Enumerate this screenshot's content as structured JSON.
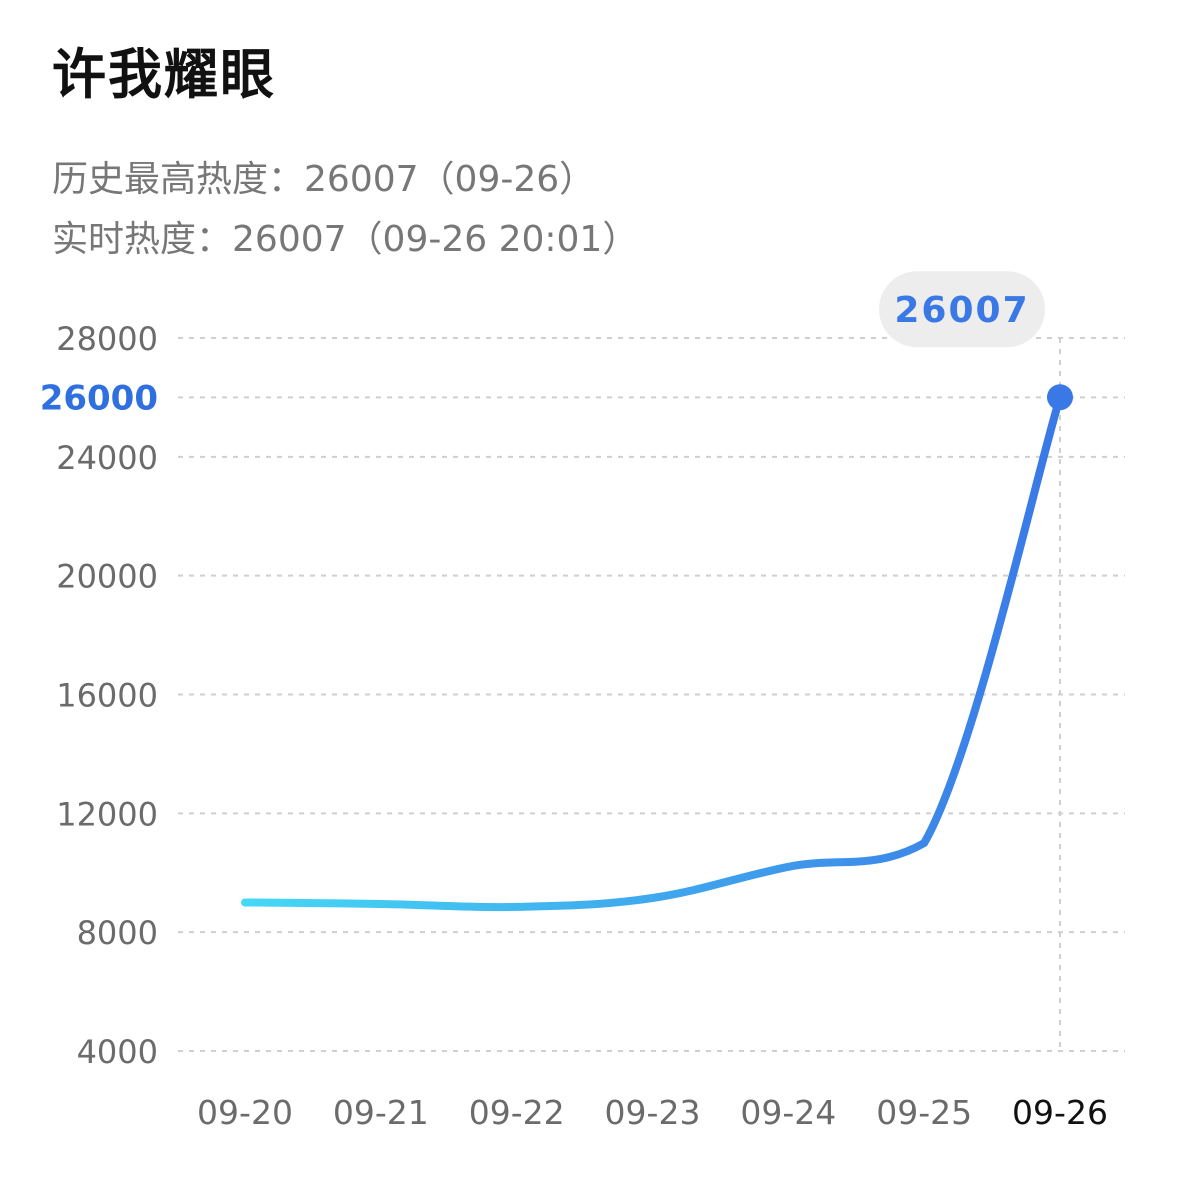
{
  "header": {
    "title": "许我耀眼"
  },
  "stats": {
    "peak_label": "历史最高热度：",
    "peak_value": "26007（09-26）",
    "realtime_label": "实时热度：",
    "realtime_value": "26007（09-26 20:01）"
  },
  "colors": {
    "line_start": "#45d8f5",
    "line_end": "#3a78e6",
    "grid": "#cfcfcf",
    "highlight": "#2f6fe0",
    "bubble_bg": "#ededed"
  },
  "chart_data": {
    "type": "line",
    "x": [
      "09-20",
      "09-21",
      "09-22",
      "09-23",
      "09-24",
      "09-25",
      "09-26"
    ],
    "series": [
      {
        "values": [
          9000,
          8950,
          8850,
          9150,
          10200,
          11000,
          26007
        ]
      }
    ],
    "yticks": [
      "28000",
      "26000",
      "24000",
      "20000",
      "16000",
      "12000",
      "8000",
      "4000"
    ],
    "ylim": [
      4000,
      28000
    ],
    "highlight_tick": "26000",
    "active_x": "09-26",
    "tooltip_value": "26007",
    "grid": true,
    "grid_style": "dashed"
  }
}
